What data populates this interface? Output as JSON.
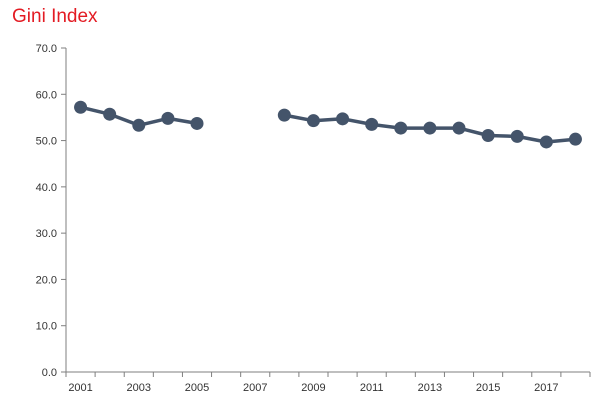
{
  "chart_data": {
    "type": "line",
    "title": "Gini Index",
    "xlabel": "",
    "ylabel": "",
    "xlim": [
      2001,
      2018
    ],
    "ylim": [
      0,
      70
    ],
    "grid": false,
    "legend": "none",
    "y_ticks": [
      "0.0",
      "10.0",
      "20.0",
      "30.0",
      "40.0",
      "50.0",
      "60.0",
      "70.0"
    ],
    "x_ticks": [
      "2001",
      "2003",
      "2005",
      "2007",
      "2009",
      "2011",
      "2013",
      "2015",
      "2017"
    ],
    "line_color": "#44546a",
    "series": [
      {
        "x": [
          2001,
          2002,
          2003,
          2004,
          2005,
          2006,
          2007,
          2008,
          2009,
          2010,
          2011,
          2012,
          2013,
          2014,
          2015,
          2016,
          2017,
          2018
        ],
        "values": [
          57.2,
          55.7,
          53.3,
          54.8,
          53.7,
          null,
          null,
          55.5,
          54.3,
          54.7,
          53.5,
          52.7,
          52.7,
          52.7,
          51.1,
          50.9,
          49.7,
          50.3
        ]
      }
    ]
  }
}
